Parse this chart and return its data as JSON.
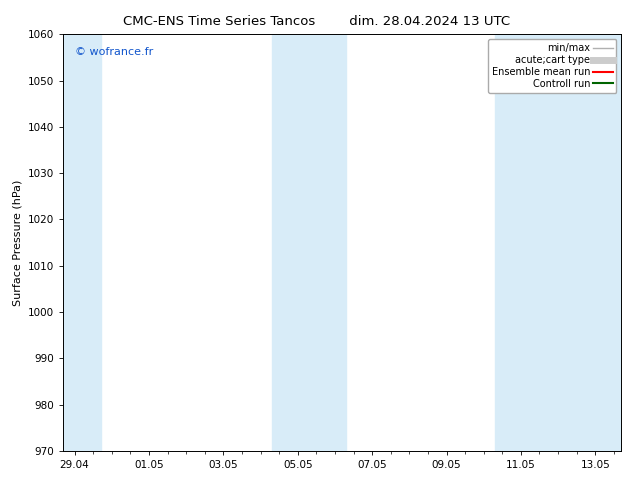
{
  "title_left": "CMC-ENS Time Series Tancos",
  "title_right": "dim. 28.04.2024 13 UTC",
  "ylabel": "Surface Pressure (hPa)",
  "ylim": [
    970,
    1060
  ],
  "yticks": [
    970,
    980,
    990,
    1000,
    1010,
    1020,
    1030,
    1040,
    1050,
    1060
  ],
  "xtick_labels": [
    "29.04",
    "01.05",
    "03.05",
    "05.05",
    "07.05",
    "09.05",
    "11.05",
    "13.05"
  ],
  "xtick_positions": [
    0,
    2,
    4,
    6,
    8,
    10,
    12,
    14
  ],
  "xlim": [
    -0.3,
    14.7
  ],
  "shaded_bands": [
    {
      "x_start": -0.3,
      "x_end": 0.7
    },
    {
      "x_start": 5.3,
      "x_end": 7.3
    },
    {
      "x_start": 11.3,
      "x_end": 14.7
    }
  ],
  "shaded_color": "#d8ecf8",
  "background_color": "#ffffff",
  "watermark_text": "© wofrance.fr",
  "watermark_color": "#1155cc",
  "legend_items": [
    {
      "label": "min/max",
      "color": "#b0b0b0",
      "lw": 1.0
    },
    {
      "label": "acute;cart type",
      "color": "#cccccc",
      "lw": 5
    },
    {
      "label": "Ensemble mean run",
      "color": "#ff0000",
      "lw": 1.5
    },
    {
      "label": "Controll run",
      "color": "#006400",
      "lw": 1.5
    }
  ],
  "title_fontsize": 9.5,
  "ylabel_fontsize": 8,
  "tick_fontsize": 7.5,
  "legend_fontsize": 7,
  "watermark_fontsize": 8
}
